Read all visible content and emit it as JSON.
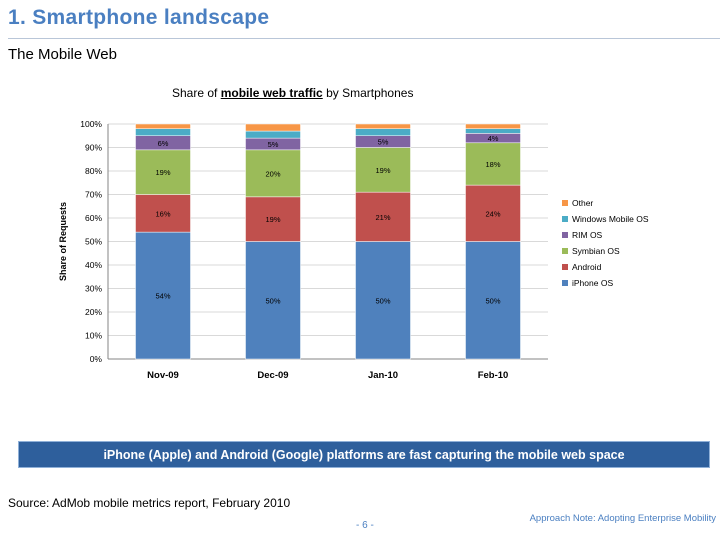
{
  "slide": {
    "title": "1. Smartphone landscape",
    "subtitle": "The Mobile Web",
    "banner": "iPhone (Apple) and Android (Google) platforms are fast capturing the mobile web space",
    "source": "Source: AdMob mobile metrics report, February 2010",
    "page": "- 6 -",
    "footer_note": "Approach Note: Adopting Enterprise Mobility"
  },
  "chart_data": {
    "type": "bar",
    "stacked": true,
    "title_prefix": "Share of ",
    "title_bold": "mobile web traffic",
    "title_suffix": " by Smartphones",
    "xlabel": "",
    "ylabel": "Share of Requests",
    "ylim": [
      0,
      100
    ],
    "yticks": [
      "0%",
      "10%",
      "20%",
      "30%",
      "40%",
      "50%",
      "60%",
      "70%",
      "80%",
      "90%",
      "100%"
    ],
    "categories": [
      "Nov-09",
      "Dec-09",
      "Jan-10",
      "Feb-10"
    ],
    "legend_position": "right",
    "series": [
      {
        "name": "iPhone OS",
        "color": "#4f81bd",
        "values": [
          54,
          50,
          50,
          50
        ],
        "labels": [
          "54%",
          "50%",
          "50%",
          "50%"
        ]
      },
      {
        "name": "Android",
        "color": "#c0504d",
        "values": [
          16,
          19,
          21,
          24
        ],
        "labels": [
          "16%",
          "19%",
          "21%",
          "24%"
        ]
      },
      {
        "name": "Symbian OS",
        "color": "#9bbb59",
        "values": [
          19,
          20,
          19,
          18
        ],
        "labels": [
          "19%",
          "20%",
          "19%",
          "18%"
        ]
      },
      {
        "name": "RIM OS",
        "color": "#8064a2",
        "values": [
          6,
          5,
          5,
          4
        ],
        "labels": [
          "6%",
          "5%",
          "5%",
          "4%"
        ]
      },
      {
        "name": "Windows Mobile OS",
        "color": "#4bacc6",
        "values": [
          3,
          3,
          3,
          2
        ],
        "labels": [
          "",
          "",
          "",
          ""
        ]
      },
      {
        "name": "Other",
        "color": "#f79646",
        "values": [
          2,
          3,
          2,
          2
        ],
        "labels": [
          "",
          "",
          "",
          ""
        ]
      }
    ]
  }
}
